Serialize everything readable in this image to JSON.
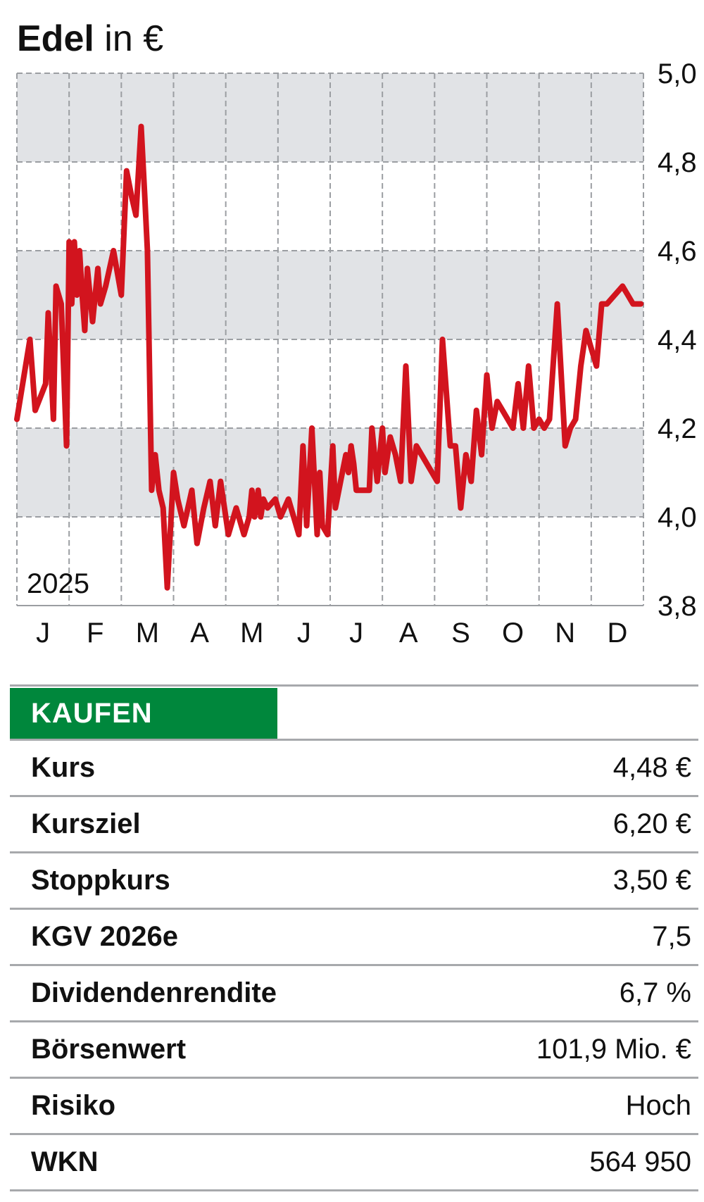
{
  "header": {
    "name": "Edel",
    "unit": "in €"
  },
  "colors": {
    "line": "#d2141e",
    "band": "#e1e3e6",
    "grid": "#9b9ea2",
    "rating_bg": "#00873c"
  },
  "chart_data": {
    "type": "line",
    "year_label": "2025",
    "x_tick_labels": [
      "J",
      "F",
      "M",
      "A",
      "M",
      "J",
      "J",
      "A",
      "S",
      "O",
      "N",
      "D"
    ],
    "ylim": [
      3.8,
      5.0
    ],
    "y_tick_labels": [
      "5,0",
      "4,8",
      "4,6",
      "4,4",
      "4,2",
      "4,0",
      "3,8"
    ],
    "y_ticks": [
      5.0,
      4.8,
      4.6,
      4.4,
      4.2,
      4.0,
      3.8
    ],
    "grid": true,
    "series": [
      {
        "x": [
          0,
          0.25,
          0.35,
          0.55,
          0.6,
          0.7,
          0.75,
          0.85,
          0.95,
          1.0,
          1.05,
          1.1,
          1.15,
          1.2,
          1.25,
          1.3,
          1.35,
          1.45,
          1.55,
          1.6,
          1.7,
          1.85,
          2.0,
          2.1,
          2.2,
          2.28,
          2.38,
          2.45,
          2.5,
          2.58,
          2.65,
          2.72,
          2.8,
          2.88,
          3.0,
          3.08,
          3.2,
          3.35,
          3.45,
          3.58,
          3.7,
          3.8,
          3.9,
          4.05,
          4.2,
          4.35,
          4.45,
          4.5,
          4.55,
          4.6,
          4.62,
          4.67,
          4.72,
          4.8,
          4.95,
          5.05,
          5.2,
          5.3,
          5.4,
          5.48,
          5.55,
          5.65,
          5.75,
          5.8,
          5.85,
          5.95,
          6.05,
          6.1,
          6.2,
          6.3,
          6.35,
          6.4,
          6.45,
          6.5,
          6.55,
          6.6,
          6.68,
          6.75,
          6.8,
          6.9,
          7.0,
          7.05,
          7.15,
          7.25,
          7.35,
          7.45,
          7.55,
          7.65,
          7.75,
          7.85,
          7.95,
          8.05,
          8.15,
          8.3,
          8.4,
          8.5,
          8.6,
          8.7,
          8.8,
          8.9,
          9.0,
          9.1,
          9.2,
          9.3,
          9.4,
          9.5,
          9.6,
          9.7,
          9.8,
          9.9,
          10.0,
          10.1,
          10.2,
          10.35,
          10.5,
          10.6,
          10.7,
          10.8,
          10.9,
          11.0,
          11.1,
          11.2,
          11.3,
          11.45,
          11.6,
          11.7,
          11.8,
          11.95
        ],
        "y": [
          4.22,
          4.4,
          4.24,
          4.3,
          4.46,
          4.22,
          4.52,
          4.48,
          4.16,
          4.62,
          4.48,
          4.62,
          4.5,
          4.6,
          4.5,
          4.42,
          4.56,
          4.44,
          4.56,
          4.48,
          4.52,
          4.6,
          4.5,
          4.78,
          4.72,
          4.68,
          4.88,
          4.72,
          4.6,
          4.06,
          4.14,
          4.06,
          4.02,
          3.84,
          4.1,
          4.04,
          3.98,
          4.06,
          3.94,
          4.02,
          4.08,
          3.98,
          4.08,
          3.96,
          4.02,
          3.96,
          4.0,
          4.06,
          4.0,
          4.04,
          4.06,
          4.0,
          4.04,
          4.02,
          4.04,
          4.0,
          4.04,
          4.0,
          3.96,
          4.16,
          3.98,
          4.2,
          3.96,
          4.1,
          3.98,
          3.96,
          4.16,
          4.02,
          4.08,
          4.14,
          4.1,
          4.16,
          4.12,
          4.06,
          4.06,
          4.06,
          4.06,
          4.06,
          4.2,
          4.08,
          4.2,
          4.1,
          4.18,
          4.14,
          4.08,
          4.34,
          4.08,
          4.16,
          4.14,
          4.12,
          4.1,
          4.08,
          4.4,
          4.16,
          4.16,
          4.02,
          4.14,
          4.08,
          4.24,
          4.14,
          4.32,
          4.2,
          4.26,
          4.24,
          4.22,
          4.2,
          4.3,
          4.2,
          4.34,
          4.2,
          4.22,
          4.2,
          4.22,
          4.48,
          4.16,
          4.2,
          4.22,
          4.34,
          4.42,
          4.38,
          4.34,
          4.48,
          4.48,
          4.5,
          4.52,
          4.5,
          4.48,
          4.48
        ]
      }
    ]
  },
  "table": {
    "rating": "KAUFEN",
    "rows": [
      {
        "label": "Kurs",
        "value": "4,48 €"
      },
      {
        "label": "Kursziel",
        "value": "6,20 €"
      },
      {
        "label": "Stoppkurs",
        "value": "3,50 €"
      },
      {
        "label": "KGV 2026e",
        "value": "7,5"
      },
      {
        "label": "Dividendenrendite",
        "value": "6,7 %"
      },
      {
        "label": "Börsenwert",
        "value": "101,9 Mio. €"
      },
      {
        "label": "Risiko",
        "value": "Hoch"
      },
      {
        "label": "WKN",
        "value": "564 950"
      }
    ]
  }
}
